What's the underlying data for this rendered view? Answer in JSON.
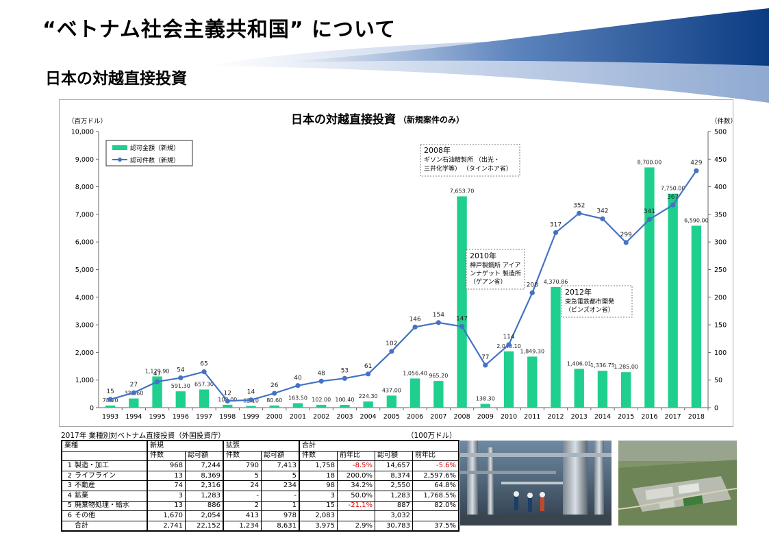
{
  "slide": {
    "title": "“ベトナム社会主義共和国” について",
    "subtitle": "日本の対越直接投資"
  },
  "chart_data": {
    "type": "bar+line",
    "title": "日本の対越直接投資",
    "title_note": "（新規案件のみ）",
    "ylabel_left": "（百万ドル）",
    "ylabel_right": "（件数）",
    "ylim_left": [
      0,
      10000
    ],
    "ylim_right": [
      0,
      500
    ],
    "yticks_left": [
      "0",
      "1,000",
      "2,000",
      "3,000",
      "4,000",
      "5,000",
      "6,000",
      "7,000",
      "8,000",
      "9,000",
      "10,000"
    ],
    "yticks_right": [
      "0",
      "50",
      "100",
      "150",
      "200",
      "250",
      "300",
      "350",
      "400",
      "450",
      "500"
    ],
    "categories": [
      "1993",
      "1994",
      "1995",
      "1996",
      "1997",
      "1998",
      "1999",
      "2000",
      "2001",
      "2002",
      "2003",
      "2004",
      "2005",
      "2006",
      "2007",
      "2008",
      "2009",
      "2010",
      "2011",
      "2012",
      "2013",
      "2014",
      "2015",
      "2016",
      "2017",
      "2018"
    ],
    "grid": false,
    "legend_position": "top-left",
    "series": [
      {
        "name": "認可金額（新規）",
        "kind": "bar",
        "axis": "left",
        "color": "#1fcf8d",
        "values": [
          78.2,
          332.6,
          1129.9,
          591.3,
          657.3,
          103.0,
          62.1,
          80.6,
          163.5,
          102.0,
          100.4,
          224.3,
          437.0,
          1056.4,
          965.2,
          7653.7,
          138.3,
          2040.1,
          1849.3,
          4370.86,
          1406.01,
          1336.75,
          1285.0,
          8700.0,
          7750.0,
          6590.0
        ],
        "labels": [
          "78.20",
          "332.60",
          "1,129.90",
          "591.30",
          "657.30",
          "103.00",
          "62.10",
          "80.60",
          "163.50",
          "102.00",
          "100.40",
          "224.30",
          "437.00",
          "1,056.40",
          "965.20",
          "7,653.70",
          "138.30",
          "2,040.10",
          "1,849.30",
          "4,370.86",
          "1,406.01",
          "1,336.75",
          "1,285.00",
          "8,700.00",
          "7,750.00",
          "6,590.00"
        ]
      },
      {
        "name": "認可件数（新規）",
        "kind": "line",
        "axis": "right",
        "color": "#4472c4",
        "values": [
          15,
          27,
          47,
          54,
          65,
          12,
          14,
          26,
          40,
          48,
          53,
          61,
          102,
          146,
          154,
          147,
          77,
          114,
          208,
          317,
          352,
          342,
          299,
          341,
          367,
          429
        ],
        "labels": [
          "15",
          "27",
          "47",
          "54",
          "65",
          "12",
          "14",
          "26",
          "40",
          "48",
          "53",
          "61",
          "102",
          "146",
          "154",
          "147",
          "77",
          "114",
          "208",
          "317",
          "352",
          "342",
          "299",
          "341",
          "367",
          "429"
        ]
      }
    ],
    "annotations": [
      {
        "lines": [
          "2008年",
          "ギソン石油精製所 （出光・",
          "三井化学等） （タインホア省）"
        ]
      },
      {
        "lines": [
          "2010年",
          "神戸製鋼所 アイア",
          "ンナゲット 製造所",
          "（ゲアン省）"
        ]
      },
      {
        "lines": [
          "2012年",
          "東急電鉄都市開発",
          "（ビンズオン省）"
        ]
      }
    ]
  },
  "table": {
    "caption": "2017年 業種別対ベトナム直接投資（外国投資庁）",
    "unit": "（100万ドル）",
    "group_headers": {
      "industry": "業種",
      "new": "新規",
      "expand": "拡張",
      "total": "合計"
    },
    "sub_headers": [
      "件数",
      "認可額",
      "件数",
      "認可額",
      "件数",
      "前年比",
      "認可額",
      "前年比"
    ],
    "rows": [
      {
        "no": "1",
        "name": "製造・加工",
        "cells": [
          "968",
          "7,244",
          "790",
          "7,413",
          "1,758",
          "-8.5%",
          "14,657",
          "-5.6%"
        ]
      },
      {
        "no": "2",
        "name": "ライフライン",
        "cells": [
          "13",
          "8,369",
          "5",
          "5",
          "18",
          "200.0%",
          "8,374",
          "2,597.6%"
        ]
      },
      {
        "no": "3",
        "name": "不動産",
        "cells": [
          "74",
          "2,316",
          "24",
          "234",
          "98",
          "34.2%",
          "2,550",
          "64.8%"
        ]
      },
      {
        "no": "4",
        "name": "鉱業",
        "cells": [
          "3",
          "1,283",
          "-",
          "-",
          "3",
          "50.0%",
          "1,283",
          "1,768.5%"
        ]
      },
      {
        "no": "5",
        "name": "廃棄物処理・給水",
        "cells": [
          "13",
          "886",
          "2",
          "1",
          "15",
          "-21.1%",
          "887",
          "82.0%"
        ]
      },
      {
        "no": "6",
        "name": "その他",
        "cells": [
          "1,670",
          "2,054",
          "413",
          "978",
          "2,083",
          "",
          "3,032",
          ""
        ]
      }
    ],
    "total": {
      "name": "合計",
      "cells": [
        "2,741",
        "22,152",
        "1,234",
        "8,631",
        "3,975",
        "2.9%",
        "30,783",
        "37.5%"
      ]
    }
  },
  "colors": {
    "bar": "#1fcf8d",
    "line": "#4472c4",
    "negative": "#e00000",
    "wave_dark": "#0b3c82",
    "wave_light": "#a9bfdc"
  }
}
